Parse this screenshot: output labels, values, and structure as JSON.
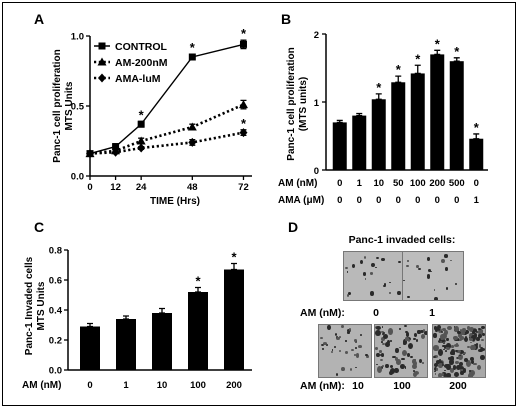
{
  "chart_data": [
    {
      "panel": "A",
      "type": "line",
      "xlabel": "TIME (Hrs)",
      "ylabel": "Panc-1 cell proliferation MTS Units",
      "x": [
        0,
        12,
        24,
        48,
        72
      ],
      "xticks": [
        "0",
        "12",
        "24",
        "48",
        "72"
      ],
      "xlim": [
        0,
        76
      ],
      "ylim": [
        0,
        1.0
      ],
      "yticks": [
        "0.0",
        "0.5",
        "1.0"
      ],
      "legend": "top-left",
      "grid": false,
      "series": [
        {
          "name": "CONTROL",
          "values": [
            0.16,
            0.21,
            0.37,
            0.85,
            0.94
          ],
          "err": [
            0.01,
            0.02,
            0.02,
            0.02,
            0.03
          ],
          "stars": [
            false,
            false,
            true,
            true,
            true
          ],
          "style": "solid",
          "marker": "square"
        },
        {
          "name": "AM-200nM",
          "values": [
            0.16,
            0.18,
            0.25,
            0.35,
            0.51
          ],
          "err": [
            0.01,
            0.01,
            0.02,
            0.02,
            0.03
          ],
          "stars": [
            false,
            false,
            false,
            false,
            false
          ],
          "style": "dotted",
          "marker": "triangle"
        },
        {
          "name": "AMA-luM",
          "values": [
            0.16,
            0.17,
            0.2,
            0.24,
            0.31
          ],
          "err": [
            0.01,
            0.01,
            0.01,
            0.02,
            0.02
          ],
          "stars": [
            false,
            false,
            false,
            false,
            true
          ],
          "style": "dotted",
          "marker": "diamond"
        }
      ]
    },
    {
      "panel": "B",
      "type": "bar",
      "ylabel": "Panc-1 cell proliferation (MTS units)",
      "ylim": [
        0,
        2
      ],
      "yticks": [
        "0",
        "1",
        "2"
      ],
      "row_labels": [
        "AM (nM)",
        "AMA (μM)"
      ],
      "categories": [
        "0",
        "1",
        "10",
        "50",
        "100",
        "200",
        "500",
        "0"
      ],
      "categories2": [
        "0",
        "0",
        "0",
        "0",
        "0",
        "0",
        "0",
        "1"
      ],
      "values": [
        0.7,
        0.8,
        1.04,
        1.29,
        1.42,
        1.7,
        1.6,
        0.46
      ],
      "err": [
        0.03,
        0.03,
        0.08,
        0.09,
        0.12,
        0.06,
        0.05,
        0.07
      ],
      "stars": [
        false,
        false,
        true,
        true,
        true,
        true,
        true,
        true
      ]
    },
    {
      "panel": "C",
      "type": "bar",
      "ylabel": "Panc-1 Invaded cells MTS Units",
      "ylim": [
        0,
        0.8
      ],
      "yticks": [
        "0.0",
        "0.2",
        "0.4",
        "0.6",
        "0.8"
      ],
      "row_label": "AM (nM)",
      "categories": [
        "0",
        "1",
        "10",
        "100",
        "200"
      ],
      "values": [
        0.29,
        0.34,
        0.38,
        0.52,
        0.67
      ],
      "err": [
        0.02,
        0.02,
        0.03,
        0.03,
        0.04
      ],
      "stars": [
        false,
        false,
        false,
        true,
        true
      ]
    }
  ],
  "panelD": {
    "letter": "D",
    "title": "Panc-1 invaded cells:",
    "row1_label": "AM (nM):",
    "row1": [
      "0",
      "1"
    ],
    "row2_label": "AM (nM):",
    "row2": [
      "10",
      "100",
      "200"
    ]
  },
  "labels": {
    "A": "A",
    "B": "B",
    "C": "C",
    "star": "*"
  }
}
